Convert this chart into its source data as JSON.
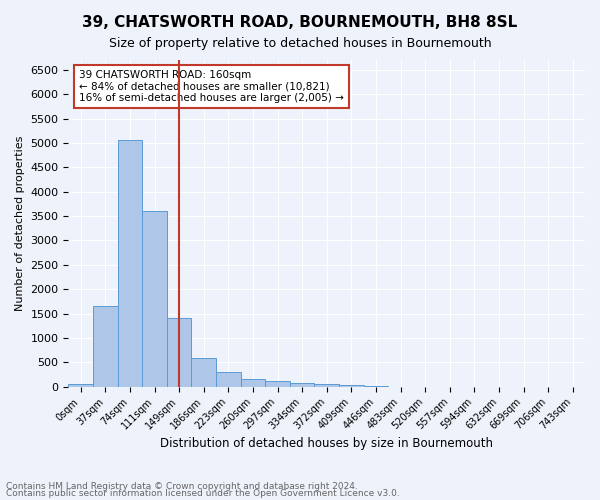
{
  "title": "39, CHATSWORTH ROAD, BOURNEMOUTH, BH8 8SL",
  "subtitle": "Size of property relative to detached houses in Bournemouth",
  "xlabel": "Distribution of detached houses by size in Bournemouth",
  "ylabel": "Number of detached properties",
  "bin_labels": [
    "0sqm",
    "37sqm",
    "74sqm",
    "111sqm",
    "149sqm",
    "186sqm",
    "223sqm",
    "260sqm",
    "297sqm",
    "334sqm",
    "372sqm",
    "409sqm",
    "446sqm",
    "483sqm",
    "520sqm",
    "557sqm",
    "594sqm",
    "632sqm",
    "669sqm",
    "706sqm",
    "743sqm"
  ],
  "bar_values": [
    60,
    1650,
    5050,
    3600,
    1400,
    590,
    300,
    150,
    115,
    85,
    50,
    30,
    15,
    0,
    0,
    0,
    0,
    0,
    0,
    0,
    0
  ],
  "bar_color": "#aec6e8",
  "bar_edge_color": "#5b9bd5",
  "vline_x": 4,
  "vline_color": "#c0392b",
  "annotation_text": "39 CHATSWORTH ROAD: 160sqm\n← 84% of detached houses are smaller (10,821)\n16% of semi-detached houses are larger (2,005) →",
  "annotation_box_color": "#ffffff",
  "annotation_box_edge": "#c0392b",
  "ylim": [
    0,
    6700
  ],
  "yticks": [
    0,
    500,
    1000,
    1500,
    2000,
    2500,
    3000,
    3500,
    4000,
    4500,
    5000,
    5500,
    6000,
    6500
  ],
  "footer1": "Contains HM Land Registry data © Crown copyright and database right 2024.",
  "footer2": "Contains public sector information licensed under the Open Government Licence v3.0.",
  "background_color": "#eef2fa",
  "grid_color": "#ffffff"
}
